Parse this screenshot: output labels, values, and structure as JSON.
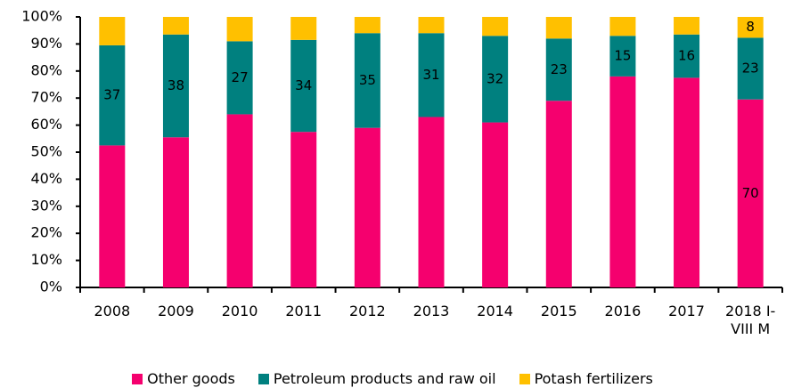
{
  "chart_data": {
    "type": "stacked_bar",
    "categories": [
      "2008",
      "2009",
      "2010",
      "2011",
      "2012",
      "2013",
      "2014",
      "2015",
      "2016",
      "2017",
      "2018 I-VIII M"
    ],
    "series": [
      {
        "name": "Other goods",
        "color": "#f5006e",
        "values": [
          52.5,
          55.5,
          64,
          57.5,
          59,
          63,
          61,
          69,
          78,
          77.5,
          69.5
        ],
        "value_labels": [
          null,
          null,
          null,
          null,
          null,
          null,
          null,
          null,
          null,
          null,
          "70"
        ]
      },
      {
        "name": "Petroleum products and raw oil",
        "color": "#00807f",
        "values": [
          37,
          38,
          27,
          34,
          35,
          31,
          32,
          23,
          15,
          16,
          22.8
        ],
        "value_labels": [
          "37",
          "38",
          "27",
          "34",
          "35",
          "31",
          "32",
          "23",
          "15",
          "16",
          "23"
        ]
      },
      {
        "name": "Potash fertilizers",
        "color": "#ffc000",
        "values": [
          10.5,
          6.5,
          9,
          8.5,
          6,
          6,
          7,
          8,
          7,
          6.5,
          7.7
        ],
        "value_labels": [
          null,
          null,
          null,
          null,
          null,
          null,
          null,
          null,
          null,
          null,
          "8"
        ]
      }
    ],
    "ylim": [
      0,
      100
    ],
    "yticks": [
      {
        "value": 0,
        "label": "0%"
      },
      {
        "value": 10,
        "label": "10%"
      },
      {
        "value": 20,
        "label": "20%"
      },
      {
        "value": 30,
        "label": "30%"
      },
      {
        "value": 40,
        "label": "40%"
      },
      {
        "value": 50,
        "label": "50%"
      },
      {
        "value": 60,
        "label": "60%"
      },
      {
        "value": 70,
        "label": "70%"
      },
      {
        "value": 80,
        "label": "80%"
      },
      {
        "value": 90,
        "label": "90%"
      },
      {
        "value": 100,
        "label": "100%"
      }
    ],
    "legend": "bottom"
  }
}
